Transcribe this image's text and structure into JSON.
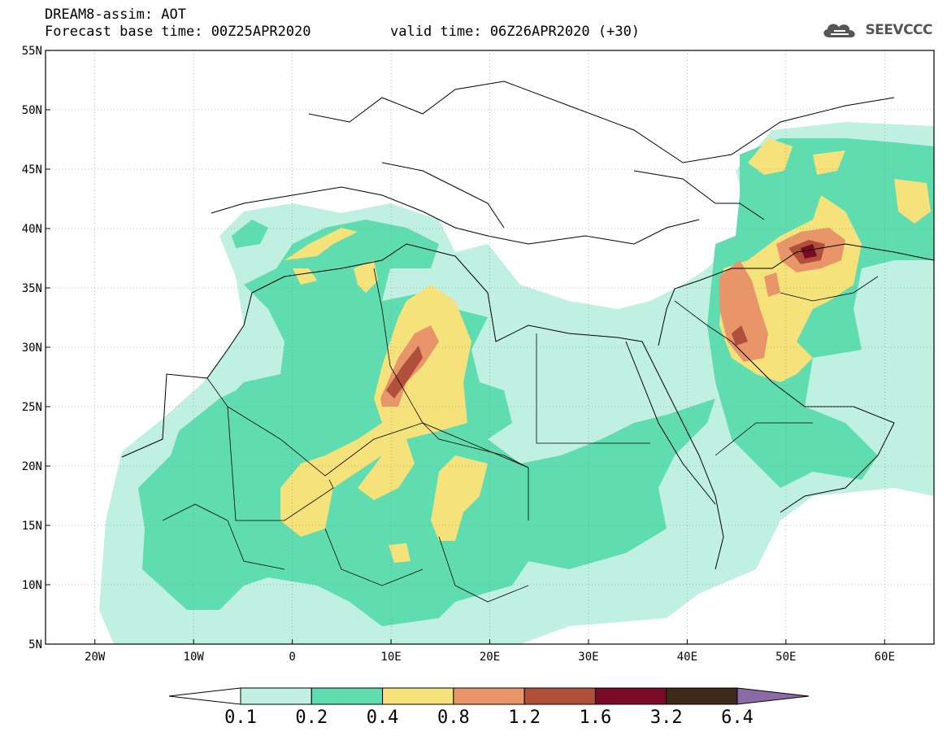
{
  "header": {
    "title": "DREAM8-assim: AOT",
    "base_time": "Forecast base time: 00Z25APR2020",
    "valid_time": "valid time: 06Z26APR2020 (+30)",
    "logo_text": "SEEVCCC",
    "logo_icon": "cloud-icon"
  },
  "map": {
    "projection": "lat-lon",
    "lon_range": [
      -25,
      65
    ],
    "lat_range": [
      5,
      55
    ],
    "lat_labels": [
      "5N",
      "10N",
      "15N",
      "20N",
      "25N",
      "30N",
      "35N",
      "40N",
      "45N",
      "50N",
      "55N"
    ],
    "lon_labels": [
      "20W",
      "10W",
      "0",
      "10E",
      "20E",
      "30E",
      "40E",
      "50E",
      "60E"
    ],
    "lat_ticks": [
      5,
      10,
      15,
      20,
      25,
      30,
      35,
      40,
      45,
      50,
      55
    ],
    "lon_ticks": [
      -20,
      -10,
      0,
      10,
      20,
      30,
      40,
      50,
      60
    ],
    "grid": "dotted"
  },
  "colorbar": {
    "levels": [
      "0.1",
      "0.2",
      "0.4",
      "0.8",
      "1.2",
      "1.6",
      "3.2",
      "6.4"
    ],
    "colors": [
      "#ffffff",
      "#c0f0e2",
      "#5fdcb0",
      "#f5e27a",
      "#e8956a",
      "#b0503a",
      "#7a0a25",
      "#3d2a18",
      "#8c6aa8"
    ]
  }
}
